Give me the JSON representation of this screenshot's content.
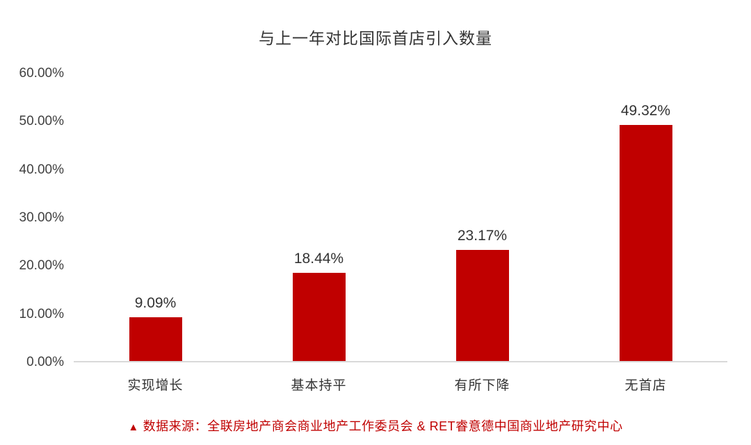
{
  "chart": {
    "title": "与上一年对比国际首店引入数量"
  },
  "chart_data": {
    "type": "bar",
    "title": "与上一年对比国际首店引入数量",
    "categories": [
      "实现增长",
      "基本持平",
      "有所下降",
      "无首店"
    ],
    "values": [
      9.09,
      18.44,
      23.17,
      49.32
    ],
    "value_labels": [
      "9.09%",
      "18.44%",
      "23.17%",
      "49.32%"
    ],
    "y_ticks": [
      "0.00%",
      "10.00%",
      "20.00%",
      "30.00%",
      "40.00%",
      "50.00%",
      "60.00%"
    ],
    "ylabel": "",
    "xlabel": "",
    "ylim": [
      0,
      60
    ],
    "grid": false,
    "legend": false,
    "bar_color": "#c00000"
  },
  "footer": {
    "marker": "▲",
    "text": "数据来源：全联房地产商会商业地产工作委员会 & RET睿意德中国商业地产研究中心"
  },
  "colors": {
    "bar": "#c00000",
    "axis_line": "#d9d9d9",
    "text": "#333333",
    "footer_text": "#c00000"
  }
}
